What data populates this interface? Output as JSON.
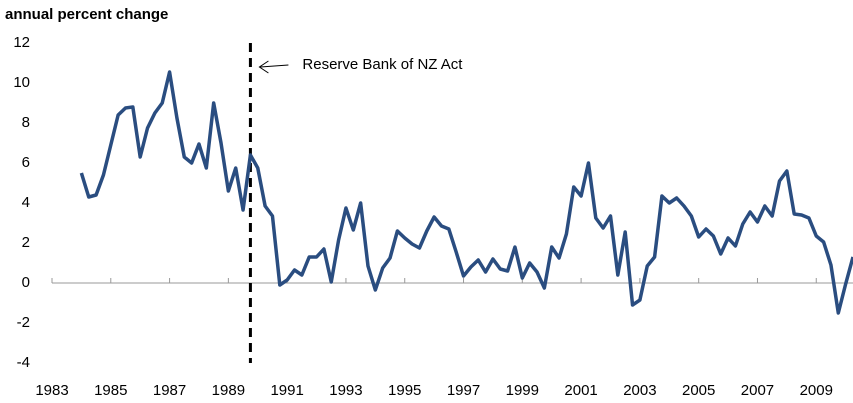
{
  "chart_data": {
    "type": "line",
    "title": "annual percent change",
    "x": [
      1984,
      1984.25,
      1984.5,
      1984.75,
      1985,
      1985.25,
      1985.5,
      1985.75,
      1986,
      1986.25,
      1986.5,
      1986.75,
      1987,
      1987.25,
      1987.5,
      1987.75,
      1988,
      1988.25,
      1988.5,
      1988.75,
      1989,
      1989.25,
      1989.5,
      1989.75,
      1990,
      1990.25,
      1990.5,
      1990.75,
      1991,
      1991.25,
      1991.5,
      1991.75,
      1992,
      1992.25,
      1992.5,
      1992.75,
      1993,
      1993.25,
      1993.5,
      1993.75,
      1994,
      1994.25,
      1994.5,
      1994.75,
      1995,
      1995.25,
      1995.5,
      1995.75,
      1996,
      1996.25,
      1996.5,
      1996.75,
      1997,
      1997.25,
      1997.5,
      1997.75,
      1998,
      1998.25,
      1998.5,
      1998.75,
      1999,
      1999.25,
      1999.5,
      1999.75,
      2000,
      2000.25,
      2000.5,
      2000.75,
      2001,
      2001.25,
      2001.5,
      2001.75,
      2002,
      2002.25,
      2002.5,
      2002.75,
      2003,
      2003.25,
      2003.5,
      2003.75,
      2004,
      2004.25,
      2004.5,
      2004.75,
      2005,
      2005.25,
      2005.5,
      2005.75,
      2006,
      2006.25,
      2006.5,
      2006.75,
      2007,
      2007.25,
      2007.5,
      2007.75,
      2008,
      2008.25,
      2008.5,
      2008.75,
      2009,
      2009.25,
      2009.5,
      2009.75,
      2010,
      2010.25
    ],
    "values": [
      5.5,
      4.3,
      4.4,
      5.4,
      6.9,
      8.4,
      8.75,
      8.8,
      6.3,
      7.75,
      8.5,
      9.0,
      10.55,
      8.25,
      6.3,
      6.0,
      6.95,
      5.75,
      9.0,
      7.0,
      4.6,
      5.75,
      3.65,
      6.4,
      5.75,
      3.85,
      3.35,
      -0.1,
      0.15,
      0.65,
      0.4,
      1.3,
      1.3,
      1.7,
      0.05,
      2.15,
      3.75,
      2.65,
      4.0,
      0.85,
      -0.35,
      0.75,
      1.25,
      2.6,
      2.25,
      1.95,
      1.75,
      2.6,
      3.3,
      2.85,
      2.7,
      1.55,
      0.35,
      0.8,
      1.15,
      0.55,
      1.2,
      0.7,
      0.6,
      1.8,
      0.25,
      1.0,
      0.55,
      -0.25,
      1.8,
      1.25,
      2.45,
      4.8,
      4.35,
      6.0,
      3.25,
      2.75,
      3.35,
      0.4,
      2.55,
      -1.1,
      -0.85,
      0.85,
      1.3,
      4.35,
      4.0,
      4.25,
      3.85,
      3.35,
      2.3,
      2.7,
      2.35,
      1.45,
      2.25,
      1.85,
      2.95,
      3.55,
      3.05,
      3.85,
      3.35,
      5.1,
      5.6,
      3.45,
      3.4,
      3.25,
      2.35,
      2.05,
      0.9,
      -1.5,
      -0.05,
      1.3
    ],
    "color": "#2a4d80",
    "xlim": [
      1983,
      2010.25
    ],
    "xticks": [
      1983,
      1985,
      1987,
      1989,
      1991,
      1993,
      1995,
      1997,
      1999,
      2001,
      2003,
      2005,
      2007,
      2009
    ],
    "ylim": [
      -4,
      12
    ],
    "yticks": [
      -4,
      -2,
      0,
      2,
      4,
      6,
      8,
      10,
      12
    ],
    "event_line": {
      "x": 1989.75,
      "label": "Reserve Bank of NZ Act"
    }
  }
}
